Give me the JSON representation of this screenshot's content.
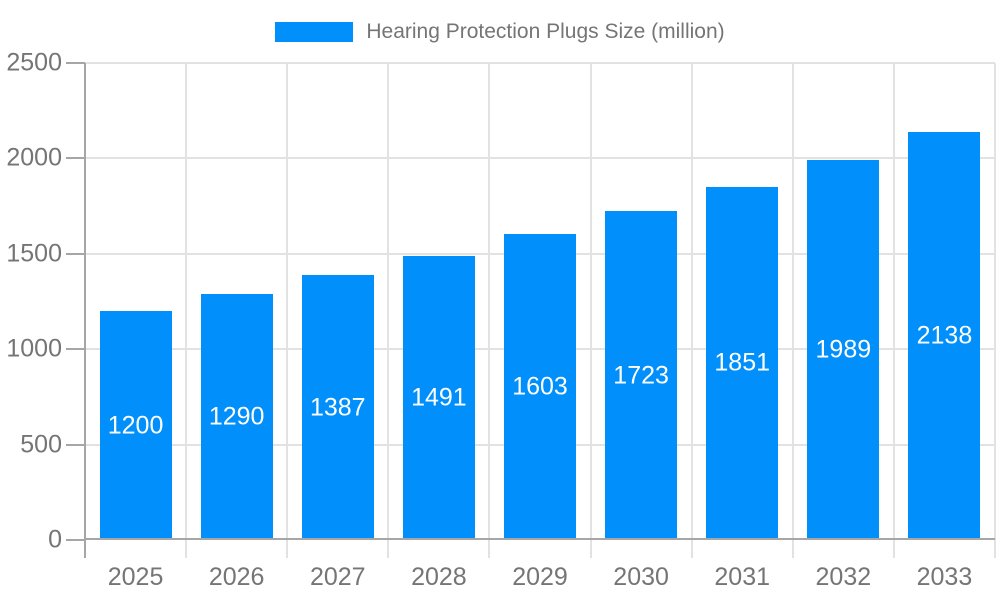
{
  "legend": {
    "label": "Hearing Protection Plugs Size (million)"
  },
  "chart_data": {
    "type": "bar",
    "title": "",
    "xlabel": "",
    "ylabel": "",
    "categories": [
      "2025",
      "2026",
      "2027",
      "2028",
      "2029",
      "2030",
      "2031",
      "2032",
      "2033"
    ],
    "values": [
      1200,
      1290,
      1387,
      1491,
      1603,
      1723,
      1851,
      1989,
      2138
    ],
    "series_name": "Hearing Protection Plugs Size (million)",
    "ylim": [
      0,
      2500
    ],
    "yticks": [
      0,
      500,
      1000,
      1500,
      2000,
      2500
    ],
    "grid": true,
    "legend_position": "top",
    "bar_labels_inside": true
  },
  "colors": {
    "bar": "#008FFB",
    "bar_label_text": "#ffffff",
    "grid_line": "#e2e2e2",
    "axis_line": "#a6a6a6",
    "tick_text": "#757575",
    "background": "#ffffff"
  }
}
